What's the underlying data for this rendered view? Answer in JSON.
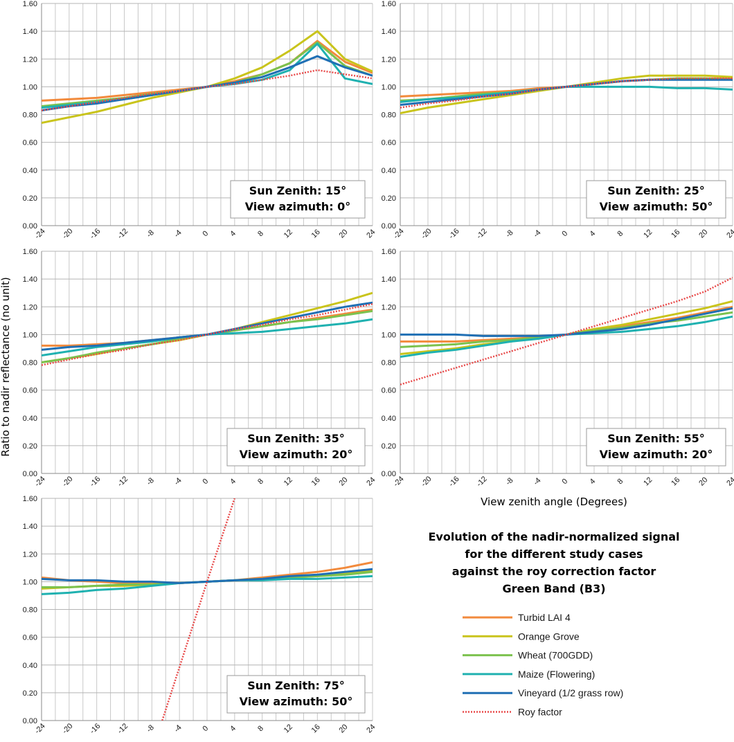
{
  "figure": {
    "title_lines": [
      "Evolution of the nadir-normalized signal",
      "for the different study cases",
      "against the roy correction factor",
      "Green Band (B3)"
    ],
    "ylabel": "Ratio to nadir reflectance (no unit)",
    "xlabel": "View zenith angle (Degrees)"
  },
  "series_styles": [
    {
      "name": "Turbid LAI 4",
      "color": "#f28a3c",
      "dash": "solid"
    },
    {
      "name": "Orange Grove",
      "color": "#c9c41c",
      "dash": "solid"
    },
    {
      "name": "Wheat (700GDD)",
      "color": "#7cc24e",
      "dash": "solid"
    },
    {
      "name": "Maize (Flowering)",
      "color": "#1fb1b0",
      "dash": "solid"
    },
    {
      "name": "Vineyard (1/2 grass row)",
      "color": "#1f6fb4",
      "dash": "solid"
    },
    {
      "name": "Roy factor",
      "color": "#e84a4a",
      "dash": "dotted"
    }
  ],
  "chart_data": [
    {
      "type": "line",
      "annotation": [
        "Sun Zenith: 15°",
        "View azimuth: 0°"
      ],
      "x": [
        -24,
        -20,
        -16,
        -12,
        -8,
        -4,
        0,
        4,
        8,
        12,
        16,
        20,
        24
      ],
      "xlim": [
        -24,
        24
      ],
      "ylim": [
        0,
        1.6
      ],
      "grid": true,
      "series": [
        {
          "name": "Turbid LAI 4",
          "values": [
            0.9,
            0.91,
            0.92,
            0.94,
            0.96,
            0.98,
            1.0,
            1.04,
            1.09,
            1.17,
            1.33,
            1.18,
            1.1
          ]
        },
        {
          "name": "Orange Grove",
          "values": [
            0.74,
            0.78,
            0.82,
            0.87,
            0.92,
            0.96,
            1.0,
            1.06,
            1.14,
            1.26,
            1.4,
            1.2,
            1.11
          ]
        },
        {
          "name": "Wheat (700GDD)",
          "values": [
            0.86,
            0.88,
            0.9,
            0.92,
            0.95,
            0.97,
            1.0,
            1.03,
            1.09,
            1.17,
            1.32,
            1.15,
            1.08
          ]
        },
        {
          "name": "Maize (Flowering)",
          "values": [
            0.85,
            0.87,
            0.89,
            0.91,
            0.94,
            0.97,
            1.0,
            1.02,
            1.05,
            1.12,
            1.31,
            1.06,
            1.02
          ]
        },
        {
          "name": "Vineyard (1/2 grass row)",
          "values": [
            0.83,
            0.86,
            0.88,
            0.91,
            0.94,
            0.97,
            1.0,
            1.03,
            1.07,
            1.14,
            1.22,
            1.14,
            1.08
          ]
        },
        {
          "name": "Roy factor",
          "values": [
            0.83,
            0.86,
            0.89,
            0.92,
            0.95,
            0.97,
            1.0,
            1.02,
            1.05,
            1.08,
            1.12,
            1.09,
            1.06
          ]
        }
      ]
    },
    {
      "type": "line",
      "annotation": [
        "Sun Zenith: 25°",
        "View azimuth: 50°"
      ],
      "x": [
        -24,
        -20,
        -16,
        -12,
        -8,
        -4,
        0,
        4,
        8,
        12,
        16,
        20,
        24
      ],
      "xlim": [
        -24,
        24
      ],
      "ylim": [
        0,
        1.6
      ],
      "grid": true,
      "series": [
        {
          "name": "Turbid LAI 4",
          "values": [
            0.93,
            0.94,
            0.95,
            0.96,
            0.97,
            0.99,
            1.0,
            1.02,
            1.04,
            1.05,
            1.06,
            1.06,
            1.06
          ]
        },
        {
          "name": "Orange Grove",
          "values": [
            0.81,
            0.85,
            0.88,
            0.91,
            0.94,
            0.97,
            1.0,
            1.03,
            1.06,
            1.08,
            1.08,
            1.08,
            1.07
          ]
        },
        {
          "name": "Wheat (700GDD)",
          "values": [
            0.9,
            0.91,
            0.93,
            0.95,
            0.96,
            0.98,
            1.0,
            1.02,
            1.04,
            1.05,
            1.06,
            1.06,
            1.05
          ]
        },
        {
          "name": "Maize (Flowering)",
          "values": [
            0.89,
            0.91,
            0.92,
            0.94,
            0.96,
            0.98,
            1.0,
            1.0,
            1.0,
            1.0,
            0.99,
            0.99,
            0.98
          ]
        },
        {
          "name": "Vineyard (1/2 grass row)",
          "values": [
            0.87,
            0.89,
            0.91,
            0.93,
            0.95,
            0.98,
            1.0,
            1.02,
            1.04,
            1.05,
            1.05,
            1.05,
            1.05
          ]
        },
        {
          "name": "Roy factor",
          "values": [
            0.85,
            0.88,
            0.9,
            0.93,
            0.95,
            0.98,
            1.0,
            1.02,
            1.04,
            1.05,
            1.06,
            1.06,
            1.06
          ]
        }
      ]
    },
    {
      "type": "line",
      "annotation": [
        "Sun Zenith: 35°",
        "View azimuth: 20°"
      ],
      "x": [
        -24,
        -20,
        -16,
        -12,
        -8,
        -4,
        0,
        4,
        8,
        12,
        16,
        20,
        24
      ],
      "xlim": [
        -24,
        24
      ],
      "ylim": [
        0,
        1.6
      ],
      "grid": true,
      "series": [
        {
          "name": "Turbid LAI 4",
          "values": [
            0.92,
            0.92,
            0.93,
            0.94,
            0.96,
            0.98,
            1.0,
            1.03,
            1.06,
            1.09,
            1.12,
            1.15,
            1.18
          ]
        },
        {
          "name": "Orange Grove",
          "values": [
            0.8,
            0.83,
            0.86,
            0.9,
            0.93,
            0.96,
            1.0,
            1.04,
            1.09,
            1.14,
            1.19,
            1.24,
            1.3
          ]
        },
        {
          "name": "Wheat (700GDD)",
          "values": [
            0.8,
            0.83,
            0.87,
            0.9,
            0.93,
            0.97,
            1.0,
            1.03,
            1.06,
            1.09,
            1.11,
            1.14,
            1.17
          ]
        },
        {
          "name": "Maize (Flowering)",
          "values": [
            0.85,
            0.88,
            0.91,
            0.93,
            0.95,
            0.98,
            1.0,
            1.01,
            1.02,
            1.04,
            1.06,
            1.08,
            1.11
          ]
        },
        {
          "name": "Vineyard (1/2 grass row)",
          "values": [
            0.89,
            0.91,
            0.92,
            0.94,
            0.96,
            0.98,
            1.0,
            1.04,
            1.08,
            1.12,
            1.16,
            1.2,
            1.23
          ]
        },
        {
          "name": "Roy factor",
          "values": [
            0.78,
            0.82,
            0.86,
            0.89,
            0.93,
            0.96,
            1.0,
            1.04,
            1.07,
            1.11,
            1.14,
            1.18,
            1.22
          ]
        }
      ]
    },
    {
      "type": "line",
      "annotation": [
        "Sun Zenith: 55°",
        "View azimuth: 20°"
      ],
      "x": [
        -24,
        -20,
        -16,
        -12,
        -8,
        -4,
        0,
        4,
        8,
        12,
        16,
        20,
        24
      ],
      "xlim": [
        -24,
        24
      ],
      "ylim": [
        0,
        1.6
      ],
      "grid": true,
      "series": [
        {
          "name": "Turbid LAI 4",
          "values": [
            0.95,
            0.95,
            0.95,
            0.96,
            0.97,
            0.98,
            1.0,
            1.03,
            1.06,
            1.09,
            1.12,
            1.16,
            1.2
          ]
        },
        {
          "name": "Orange Grove",
          "values": [
            0.86,
            0.88,
            0.9,
            0.93,
            0.95,
            0.98,
            1.0,
            1.04,
            1.07,
            1.11,
            1.15,
            1.19,
            1.24
          ]
        },
        {
          "name": "Wheat (700GDD)",
          "values": [
            0.91,
            0.92,
            0.93,
            0.95,
            0.96,
            0.98,
            1.0,
            1.03,
            1.05,
            1.08,
            1.1,
            1.13,
            1.16
          ]
        },
        {
          "name": "Maize (Flowering)",
          "values": [
            0.84,
            0.87,
            0.89,
            0.92,
            0.95,
            0.97,
            1.0,
            1.01,
            1.02,
            1.04,
            1.06,
            1.09,
            1.13
          ]
        },
        {
          "name": "Vineyard (1/2 grass row)",
          "values": [
            1.0,
            1.0,
            1.0,
            0.99,
            0.99,
            0.99,
            1.0,
            1.02,
            1.04,
            1.07,
            1.11,
            1.15,
            1.19
          ]
        },
        {
          "name": "Roy factor",
          "values": [
            0.64,
            0.7,
            0.76,
            0.82,
            0.88,
            0.94,
            1.0,
            1.06,
            1.12,
            1.18,
            1.24,
            1.31,
            1.41
          ]
        }
      ]
    },
    {
      "type": "line",
      "annotation": [
        "Sun Zenith: 75°",
        "View azimuth: 50°"
      ],
      "x": [
        -24,
        -20,
        -16,
        -12,
        -8,
        -4,
        0,
        4,
        8,
        12,
        16,
        20,
        24
      ],
      "xlim": [
        -24,
        24
      ],
      "ylim": [
        0,
        1.6
      ],
      "grid": true,
      "series": [
        {
          "name": "Turbid LAI 4",
          "values": [
            1.03,
            1.01,
            1.0,
            0.99,
            0.99,
            0.99,
            1.0,
            1.01,
            1.03,
            1.05,
            1.07,
            1.1,
            1.14
          ]
        },
        {
          "name": "Orange Grove",
          "values": [
            0.95,
            0.96,
            0.97,
            0.97,
            0.98,
            0.99,
            1.0,
            1.01,
            1.02,
            1.03,
            1.04,
            1.06,
            1.08
          ]
        },
        {
          "name": "Wheat (700GDD)",
          "values": [
            0.96,
            0.96,
            0.97,
            0.98,
            0.98,
            0.99,
            1.0,
            1.01,
            1.02,
            1.03,
            1.04,
            1.05,
            1.07
          ]
        },
        {
          "name": "Maize (Flowering)",
          "values": [
            0.91,
            0.92,
            0.94,
            0.95,
            0.97,
            0.99,
            1.0,
            1.01,
            1.01,
            1.02,
            1.02,
            1.03,
            1.04
          ]
        },
        {
          "name": "Vineyard (1/2 grass row)",
          "values": [
            1.02,
            1.01,
            1.01,
            1.0,
            1.0,
            0.99,
            1.0,
            1.01,
            1.02,
            1.04,
            1.05,
            1.07,
            1.09
          ]
        },
        {
          "name": "Roy factor",
          "x": [
            -6.5,
            0,
            4
          ],
          "values": [
            0.0,
            1.0,
            1.6
          ]
        }
      ]
    }
  ],
  "axes": {
    "yticks": [
      "0.00",
      "0.20",
      "0.40",
      "0.60",
      "0.80",
      "1.00",
      "1.20",
      "1.40",
      "1.60"
    ],
    "xticks": [
      "-24",
      "-20",
      "-16",
      "-12",
      "-8",
      "-4",
      "0",
      "4",
      "8",
      "12",
      "16",
      "20",
      "24"
    ]
  }
}
